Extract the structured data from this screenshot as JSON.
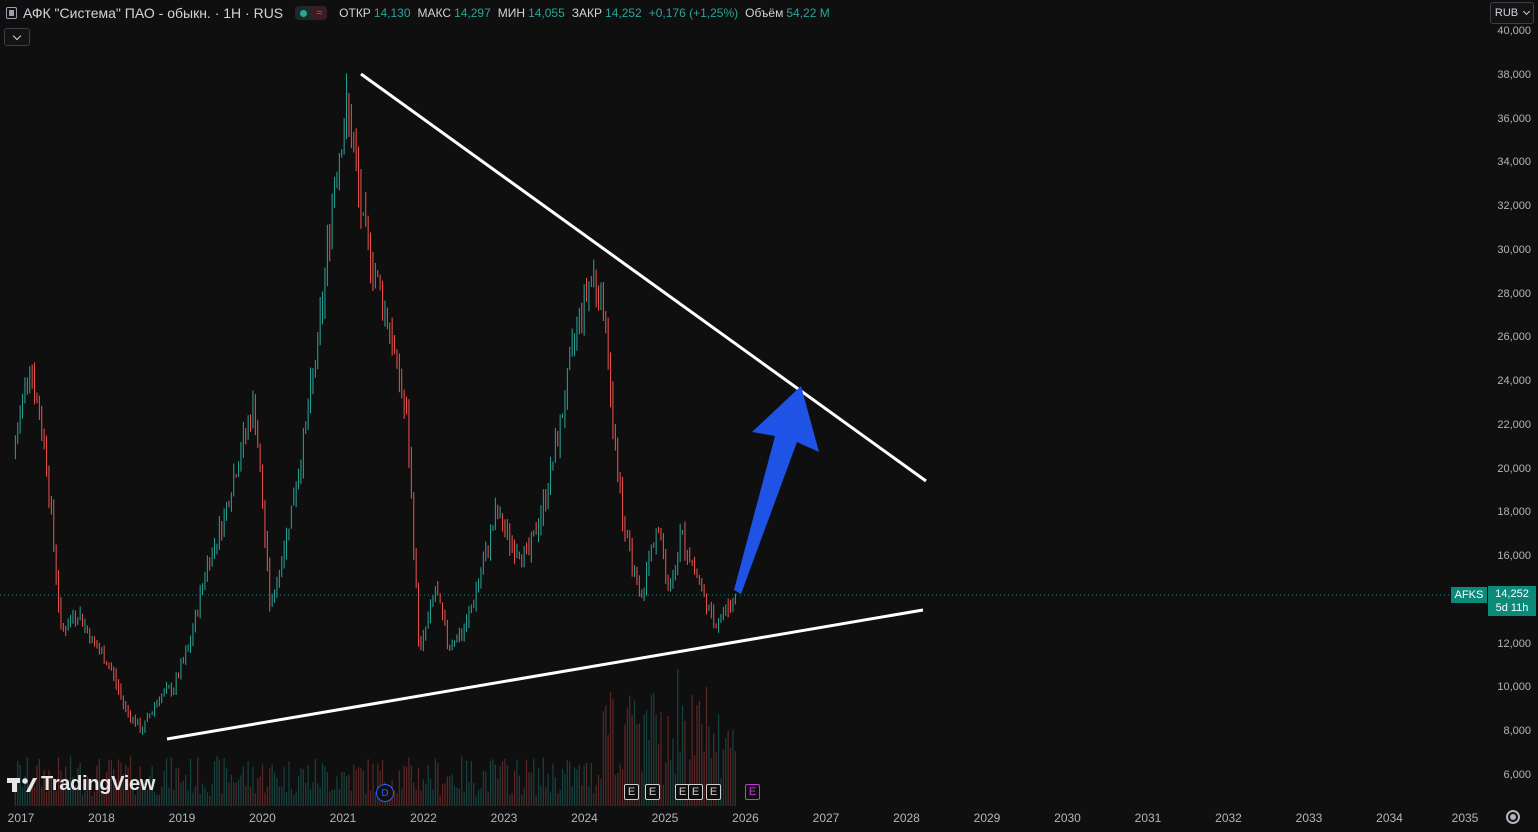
{
  "legend": {
    "title": "АФК \"Система\" ПАО - обыкн. · 1Н · RUS",
    "open_label": "ОТКР",
    "open": "14,130",
    "high_label": "МАКС",
    "high": "14,297",
    "low_label": "МИН",
    "low": "14,055",
    "close_label": "ЗАКР",
    "close": "14,252",
    "change": "+0,176 (+1,25%)",
    "volume_label": "Объём",
    "volume": "54,22 M"
  },
  "currency": "RUB",
  "price_scale": {
    "labels": [
      "40,000",
      "38,000",
      "36,000",
      "34,000",
      "32,000",
      "30,000",
      "28,000",
      "26,000",
      "24,000",
      "22,000",
      "20,000",
      "18,000",
      "16,000",
      "12,000",
      "10,000",
      "8,000",
      "6,000"
    ]
  },
  "time_scale": {
    "labels": [
      "2017",
      "2018",
      "2019",
      "2020",
      "2021",
      "2022",
      "2023",
      "2024",
      "2025",
      "2026",
      "2027",
      "2028",
      "2029",
      "2030",
      "2031",
      "2032",
      "2033",
      "2034",
      "2035"
    ]
  },
  "last_price": {
    "symbol": "AFKS",
    "price": "14,252",
    "countdown": "5d 11h"
  },
  "events": {
    "dividend": "D",
    "earnings": "E"
  },
  "branding": "TradingView",
  "colors": {
    "up": "#26a69a",
    "down": "#ef5350",
    "trendline": "#ffffff",
    "arrow": "#1e53e5",
    "price_line": "#0b8a79"
  },
  "chart_data": {
    "type": "candlestick",
    "title": "АФК \"Система\" ПАО - обыкн. · 1Н · RUS",
    "xlabel": "",
    "ylabel": "",
    "ylim": [
      5000,
      40500
    ],
    "xlim": [
      2016.9,
      2035.2
    ],
    "grid": false,
    "last_price": 14.252,
    "series": [
      {
        "name": "",
        "x": [
          2016.9,
          2017.1,
          2017.3,
          2017.5,
          2017.7,
          2017.9,
          2018.1,
          2018.3,
          2018.5,
          2018.7,
          2018.9,
          2019.1,
          2019.3,
          2019.5,
          2019.7,
          2019.9,
          2020.1,
          2020.3,
          2020.5,
          2020.7,
          2020.9,
          2021.05,
          2021.15,
          2021.25,
          2021.4,
          2021.6,
          2021.8,
          2021.95,
          2022.15,
          2022.3,
          2022.5,
          2022.7,
          2022.9,
          2023.1,
          2023.3,
          2023.5,
          2023.7,
          2023.9,
          2024.1,
          2024.25,
          2024.35,
          2024.5,
          2024.7,
          2024.9,
          2025.05,
          2025.2,
          2025.4,
          2025.6,
          2025.75,
          2025.9
        ],
        "values": [
          20500,
          25000,
          21000,
          12500,
          13500,
          12000,
          11000,
          9000,
          8000,
          9500,
          10000,
          12000,
          15500,
          17500,
          20500,
          23000,
          13500,
          17000,
          21000,
          26000,
          33500,
          36500,
          34000,
          31000,
          29000,
          26000,
          22000,
          11500,
          14500,
          12000,
          12500,
          15000,
          18000,
          16500,
          16000,
          18500,
          22000,
          26500,
          29000,
          27000,
          22000,
          17000,
          14000,
          17500,
          14500,
          17000,
          15000,
          13000,
          13500,
          14252
        ]
      }
    ],
    "annotations": [
      {
        "type": "trendline",
        "from": [
          2021.2,
          38000
        ],
        "to": [
          2028.3,
          19500
        ]
      },
      {
        "type": "trendline",
        "from": [
          2018.8,
          7500
        ],
        "to": [
          2028.3,
          13500
        ]
      },
      {
        "type": "arrow",
        "from": [
          2026.0,
          14300
        ],
        "to": [
          2026.7,
          23600
        ]
      }
    ]
  }
}
